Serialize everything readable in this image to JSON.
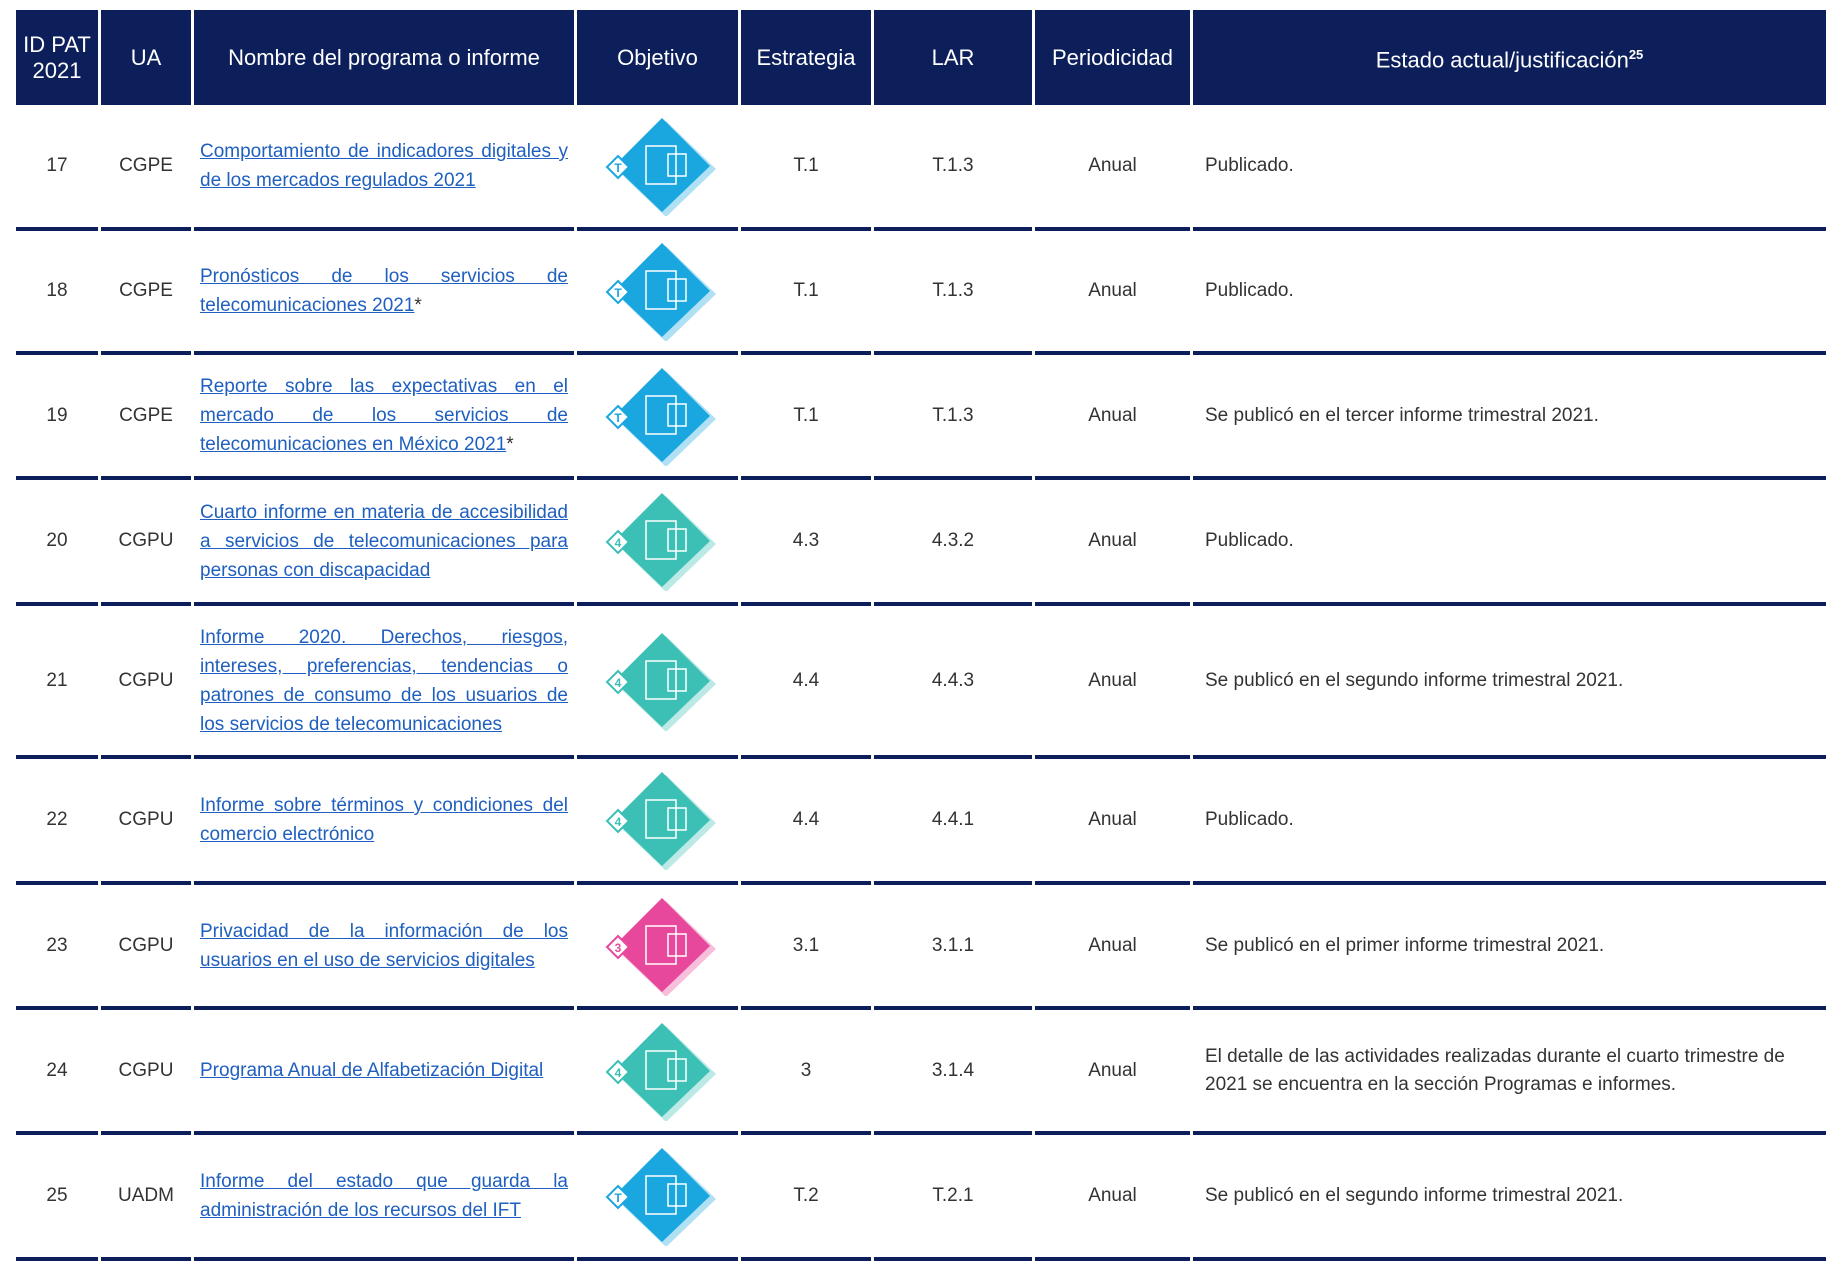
{
  "table": {
    "headers": [
      "ID PAT 2021",
      "UA",
      "Nombre del programa o informe",
      "Objetivo",
      "Estrategia",
      "LAR",
      "Periodicidad",
      "Estado actual/justificación"
    ],
    "header_footnote": "25",
    "rows": [
      {
        "id": "17",
        "ua": "CGPE",
        "name": "Comportamiento de indicadores digitales y de los mercados regulados 2021",
        "objective": "T",
        "color": "#1aa6df",
        "strategy": "T.1",
        "lar": "T.1.3",
        "periodicity": "Anual",
        "status": "Publicado."
      },
      {
        "id": "18",
        "ua": "CGPE",
        "name": "Pronósticos de los servicios de telecomunicaciones 2021",
        "note": "*",
        "objective": "T",
        "color": "#1aa6df",
        "strategy": "T.1",
        "lar": "T.1.3",
        "periodicity": "Anual",
        "status": "Publicado."
      },
      {
        "id": "19",
        "ua": "CGPE",
        "name": "Reporte sobre las expectativas en el mercado de los servicios de telecomunicaciones en México 2021",
        "note": "*",
        "objective": "T",
        "color": "#1aa6df",
        "strategy": "T.1",
        "lar": "T.1.3",
        "periodicity": "Anual",
        "status": "Se publicó en el tercer informe trimestral 2021."
      },
      {
        "id": "20",
        "ua": "CGPU",
        "name": "Cuarto informe en materia de accesibilidad a servicios de telecomunicaciones para personas con discapacidad",
        "objective": "4",
        "color": "#3cc0b5",
        "strategy": "4.3",
        "lar": "4.3.2",
        "periodicity": "Anual",
        "status": "Publicado."
      },
      {
        "id": "21",
        "ua": "CGPU",
        "name": "Informe 2020. Derechos, riesgos, intereses, preferencias, tendencias o patrones de consumo de los usuarios de los servicios de telecomunicaciones",
        "objective": "4",
        "color": "#3cc0b5",
        "strategy": "4.4",
        "lar": "4.4.3",
        "periodicity": "Anual",
        "status": "Se publicó en el segundo informe trimestral 2021."
      },
      {
        "id": "22",
        "ua": "CGPU",
        "name": "Informe sobre términos y condiciones del comercio electrónico",
        "objective": "4",
        "color": "#3cc0b5",
        "strategy": "4.4",
        "lar": "4.4.1",
        "periodicity": "Anual",
        "status": "Publicado."
      },
      {
        "id": "23",
        "ua": "CGPU",
        "name": "Privacidad de la información de los usuarios en el uso de servicios digitales",
        "objective": "3",
        "color": "#e8489b",
        "strategy": "3.1",
        "lar": "3.1.1",
        "periodicity": "Anual",
        "status": "Se publicó en el primer informe trimestral 2021."
      },
      {
        "id": "24",
        "ua": "CGPU",
        "name": "Programa Anual de Alfabetización Digital",
        "objective": "4",
        "color": "#3cc0b5",
        "strategy": "3",
        "lar": "3.1.4",
        "periodicity": "Anual",
        "status": "El detalle de las actividades realizadas durante el cuarto trimestre de 2021 se encuentra en la sección Programas e informes."
      },
      {
        "id": "25",
        "ua": "UADM",
        "name": "Informe del estado que guarda la administración de los recursos del IFT",
        "objective": "T",
        "color": "#1aa6df",
        "strategy": "T.2",
        "lar": "T.2.1",
        "periodicity": "Anual",
        "status": "Se publicó en el segundo informe trimestral 2021."
      }
    ]
  }
}
